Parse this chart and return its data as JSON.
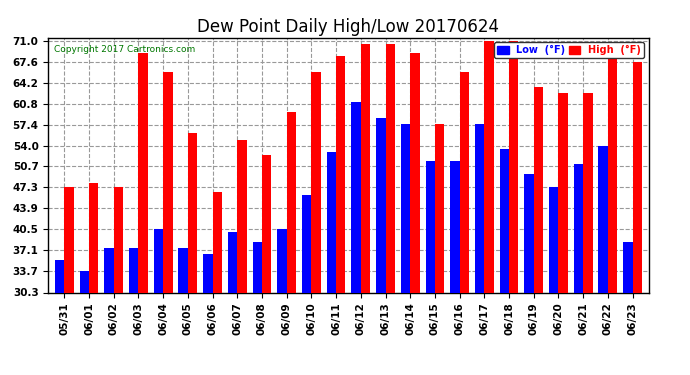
{
  "title": "Dew Point Daily High/Low 20170624",
  "copyright": "Copyright 2017 Cartronics.com",
  "dates": [
    "05/31",
    "06/01",
    "06/02",
    "06/03",
    "06/04",
    "06/05",
    "06/06",
    "06/07",
    "06/08",
    "06/09",
    "06/10",
    "06/11",
    "06/12",
    "06/13",
    "06/14",
    "06/15",
    "06/16",
    "06/17",
    "06/18",
    "06/19",
    "06/20",
    "06/21",
    "06/22",
    "06/23"
  ],
  "high": [
    47.3,
    48.0,
    47.3,
    69.0,
    66.0,
    56.0,
    46.5,
    55.0,
    52.5,
    59.5,
    66.0,
    68.5,
    70.5,
    70.5,
    69.0,
    57.5,
    66.0,
    71.0,
    71.0,
    63.5,
    62.5,
    62.5,
    68.0,
    67.6
  ],
  "low": [
    35.5,
    33.8,
    37.5,
    37.5,
    40.5,
    37.5,
    36.5,
    40.0,
    38.5,
    40.5,
    46.0,
    53.0,
    61.0,
    58.5,
    57.5,
    51.5,
    51.5,
    57.5,
    53.5,
    49.5,
    47.3,
    51.0,
    54.0,
    38.5
  ],
  "ylim_min": 30.3,
  "ylim_max": 71.0,
  "yticks": [
    30.3,
    33.7,
    37.1,
    40.5,
    43.9,
    47.3,
    50.7,
    54.0,
    57.4,
    60.8,
    64.2,
    67.6,
    71.0
  ],
  "bar_width": 0.38,
  "high_color": "#FF0000",
  "low_color": "#0000FF",
  "bg_color": "#FFFFFF",
  "grid_color": "#999999",
  "title_fontsize": 12,
  "tick_fontsize": 7.5,
  "copyright_color": "#007700",
  "legend_low_label": "Low  (°F)",
  "legend_high_label": "High  (°F)"
}
